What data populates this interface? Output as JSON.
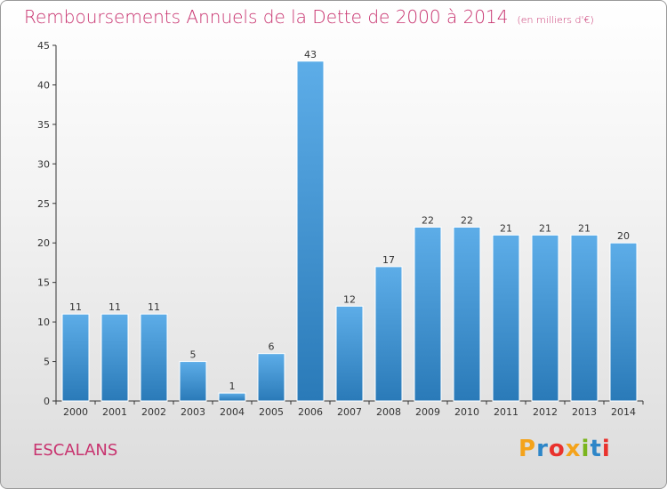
{
  "title": "Remboursements Annuels de la Dette de 2000 à 2014",
  "title_unit": "(en milliers d'€)",
  "commune": "ESCALANS",
  "logo_text": "Proxiti",
  "logo_colors": [
    "#f4a31b",
    "#2e86c8",
    "#e9322d",
    "#f4a31b",
    "#7ab51d",
    "#2e86c8",
    "#e9322d"
  ],
  "colors": {
    "title": "#c8336f",
    "bar_light": "#5dade8",
    "bar_dark": "#2a7ab8",
    "axis": "#333333"
  },
  "chart_data": {
    "type": "bar",
    "title": "Remboursements Annuels de la Dette de 2000 à 2014",
    "categories": [
      "2000",
      "2001",
      "2002",
      "2003",
      "2004",
      "2005",
      "2006",
      "2007",
      "2008",
      "2009",
      "2010",
      "2011",
      "2012",
      "2013",
      "2014"
    ],
    "values": [
      11,
      11,
      11,
      5,
      1,
      6,
      43,
      12,
      17,
      22,
      22,
      21,
      21,
      21,
      20
    ],
    "data_labels": [
      "11",
      "11",
      "11",
      "5",
      "1",
      "6",
      "43",
      "12",
      "17",
      "22",
      "22",
      "21",
      "21",
      "21",
      "20"
    ],
    "yticks": [
      0,
      5,
      10,
      15,
      20,
      25,
      30,
      35,
      40,
      45
    ],
    "ylim": [
      0,
      45
    ],
    "grid": false,
    "legend": "none"
  }
}
